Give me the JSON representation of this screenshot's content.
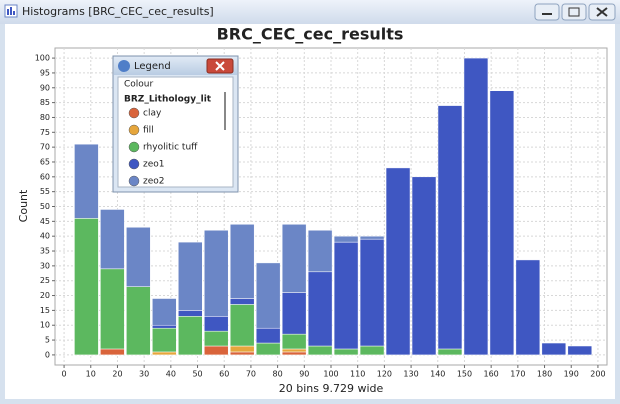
{
  "window": {
    "title": "Histograms [BRC_CEC_cec_results]"
  },
  "legend_window": {
    "title": "Legend",
    "group": "Colour",
    "field": "BRZ_Lithology_lit"
  },
  "chart_data": {
    "type": "histogram",
    "title": "BRC_CEC_cec_results",
    "x_label": "20 bins 9.729 wide",
    "y_label": "Count",
    "bins": [
      3.5,
      13.23,
      22.96,
      32.69,
      42.42,
      52.15,
      61.87,
      71.6,
      81.33,
      91.06,
      100.79,
      110.52,
      120.25,
      129.98,
      139.71,
      149.44,
      159.17,
      168.89,
      178.62,
      188.35,
      198.08
    ],
    "series": [
      {
        "name": "clay",
        "color": "#d9643b",
        "values": [
          0,
          2,
          0,
          0,
          0,
          3,
          1,
          0,
          1,
          0,
          0,
          0,
          0,
          0,
          0,
          0,
          0,
          0,
          0,
          0
        ]
      },
      {
        "name": "fill",
        "color": "#e6a63c",
        "values": [
          0,
          0,
          0,
          1,
          0,
          0,
          2,
          0,
          1,
          0,
          0,
          0,
          0,
          0,
          0,
          0,
          0,
          0,
          0,
          0
        ]
      },
      {
        "name": "rhyolitic tuff",
        "color": "#5cb85f",
        "values": [
          46,
          27,
          23,
          8,
          13,
          5,
          14,
          4,
          5,
          3,
          2,
          3,
          0,
          0,
          2,
          0,
          0,
          0,
          0,
          0
        ]
      },
      {
        "name": "zeo1",
        "color": "#3f57c2",
        "values": [
          0,
          0,
          0,
          1,
          2,
          5,
          2,
          5,
          14,
          25,
          36,
          36,
          63,
          60,
          82,
          100,
          89,
          32,
          4,
          3
        ]
      },
      {
        "name": "zeo2",
        "color": "#6b86c6",
        "values": [
          25,
          20,
          20,
          9,
          23,
          29,
          25,
          22,
          23,
          14,
          2,
          1,
          0,
          0,
          0,
          0,
          0,
          0,
          0,
          0
        ]
      }
    ],
    "xlim": [
      -3.4,
      203.4
    ],
    "ylim": [
      -3.4,
      103.4
    ],
    "xticks": [
      0,
      10,
      20,
      30,
      40,
      50,
      60,
      70,
      80,
      90,
      100,
      110,
      120,
      130,
      140,
      150,
      160,
      170,
      180,
      190,
      200
    ],
    "yticks": [
      0,
      5,
      10,
      15,
      20,
      25,
      30,
      35,
      40,
      45,
      50,
      55,
      60,
      65,
      70,
      75,
      80,
      85,
      90,
      95,
      100
    ],
    "grid": true
  }
}
